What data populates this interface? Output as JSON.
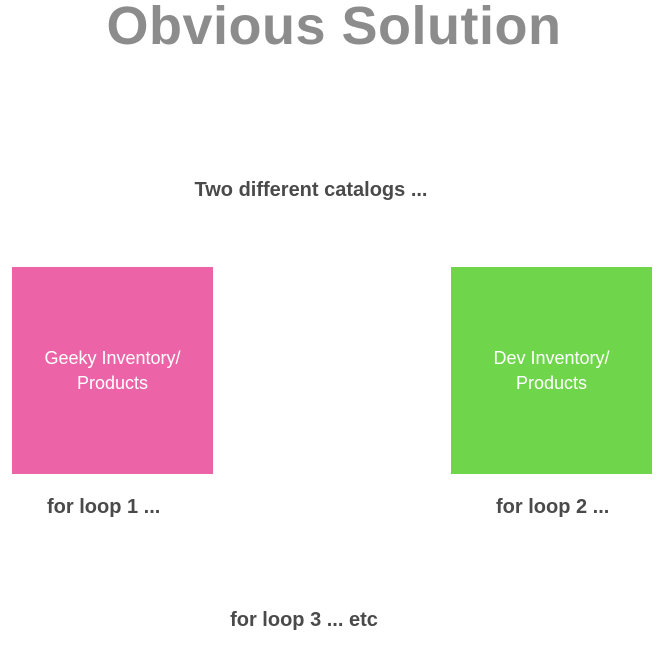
{
  "title": "Obvious Solution",
  "subtitle": "Two different catalogs ...",
  "catalogs": [
    {
      "label": "Geeky Inventory/\nProducts",
      "color": "#ec64a7",
      "loop_label": "for loop 1 ..."
    },
    {
      "label": "Dev Inventory/\nProducts",
      "color": "#6fd64b",
      "loop_label": "for loop 2 ..."
    }
  ],
  "footer": "for loop 3 ... etc"
}
